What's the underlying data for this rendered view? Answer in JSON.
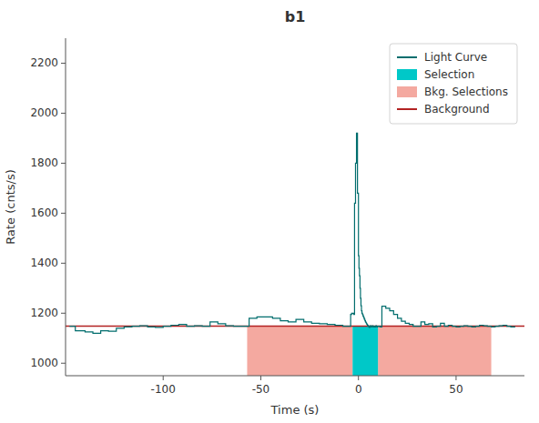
{
  "chart_data": {
    "type": "line",
    "title": "b1",
    "xlabel": "Time (s)",
    "ylabel": "Rate (cnts/s)",
    "xlim": [
      -150,
      85
    ],
    "ylim": [
      950,
      2300
    ],
    "xticks": [
      -100,
      -50,
      0,
      50
    ],
    "yticks": [
      1000,
      1200,
      1400,
      1600,
      1800,
      2000,
      2200
    ],
    "legend": "upper right",
    "x": [
      -148,
      -145,
      -140,
      -136,
      -132,
      -128,
      -124,
      -120,
      -116,
      -112,
      -108,
      -104,
      -100,
      -96,
      -92,
      -88,
      -84,
      -80,
      -76,
      -72,
      -68,
      -64,
      -60,
      -56,
      -52,
      -48,
      -44,
      -40,
      -36,
      -32,
      -28,
      -24,
      -20,
      -16,
      -12,
      -8,
      -5,
      -4,
      -3.5,
      -3.0,
      -2.5,
      -2.0,
      -1.5,
      -1.0,
      -0.5,
      0.0,
      0.256,
      0.512,
      0.768,
      1.024,
      1.28,
      1.536,
      1.792,
      2.048,
      2.304,
      2.56,
      2.816,
      3.072,
      3.328,
      3.584,
      3.84,
      4.096,
      4.352,
      4.608,
      4.864,
      5.12,
      5.376,
      5.632,
      5.888,
      6.144,
      6.4,
      6.656,
      6.912,
      7.168,
      7.424,
      7.68,
      7.936,
      8.192,
      8.448,
      8.704,
      8.96,
      9.216,
      9.472,
      9.728,
      9.984,
      10.5,
      11.0,
      12.0,
      14.0,
      16.0,
      18.0,
      20.0,
      22.0,
      24.0,
      26.0,
      28.0,
      30.0,
      32.0,
      34.0,
      36.0,
      38.0,
      40.0,
      42.0,
      44.0,
      46.0,
      48.0,
      50.0,
      52.0,
      54.0,
      56.0,
      58.0,
      60.0,
      62.0,
      64.0,
      66.0,
      68.0,
      70.0,
      72.0,
      74.0,
      76.0,
      78.0,
      80.0
    ],
    "series": [
      {
        "name": "Light Curve",
        "color": "#006d6d",
        "line_style": "steps-post",
        "values": [
          1148,
          1130,
          1125,
          1120,
          1130,
          1128,
          1140,
          1145,
          1148,
          1150,
          1145,
          1143,
          1148,
          1152,
          1155,
          1148,
          1150,
          1148,
          1165,
          1158,
          1150,
          1148,
          1148,
          1180,
          1185,
          1185,
          1180,
          1170,
          1165,
          1175,
          1165,
          1160,
          1158,
          1155,
          1152,
          1148,
          1148,
          1195,
          1200,
          1200,
          1195,
          1640,
          1800,
          1920,
          1680,
          1430,
          1380,
          1350,
          1300,
          1260,
          1230,
          1210,
          1200,
          1195,
          1190,
          1185,
          1180,
          1175,
          1170,
          1165,
          1162,
          1158,
          1155,
          1152,
          1150,
          1148,
          1145,
          1143,
          1148,
          1150,
          1148,
          1145,
          1148,
          1150,
          1148,
          1145,
          1148,
          1148,
          1145,
          1148,
          1150,
          1148,
          1145,
          1148,
          1148,
          1148,
          1145,
          1228,
          1220,
          1210,
          1195,
          1180,
          1168,
          1160,
          1155,
          1148,
          1148,
          1165,
          1155,
          1158,
          1145,
          1148,
          1160,
          1148,
          1152,
          1148,
          1145,
          1148,
          1150,
          1148,
          1145,
          1148,
          1152,
          1150,
          1148,
          1145,
          1148,
          1150,
          1152,
          1148,
          1145,
          1148
        ]
      }
    ],
    "selection": {
      "name": "Selection",
      "color": "#00c8c8",
      "range": [
        -3.0,
        10.0
      ]
    },
    "bkg_selections": {
      "name": "Bkg. Selections",
      "color": "#f4a9a0",
      "ranges": [
        [
          -57.0,
          -3.0
        ],
        [
          10.0,
          68.0
        ]
      ]
    },
    "fill_range": [
      950,
      1148
    ],
    "background": {
      "name": "Background",
      "color": "#b22222",
      "value": 1148
    }
  }
}
